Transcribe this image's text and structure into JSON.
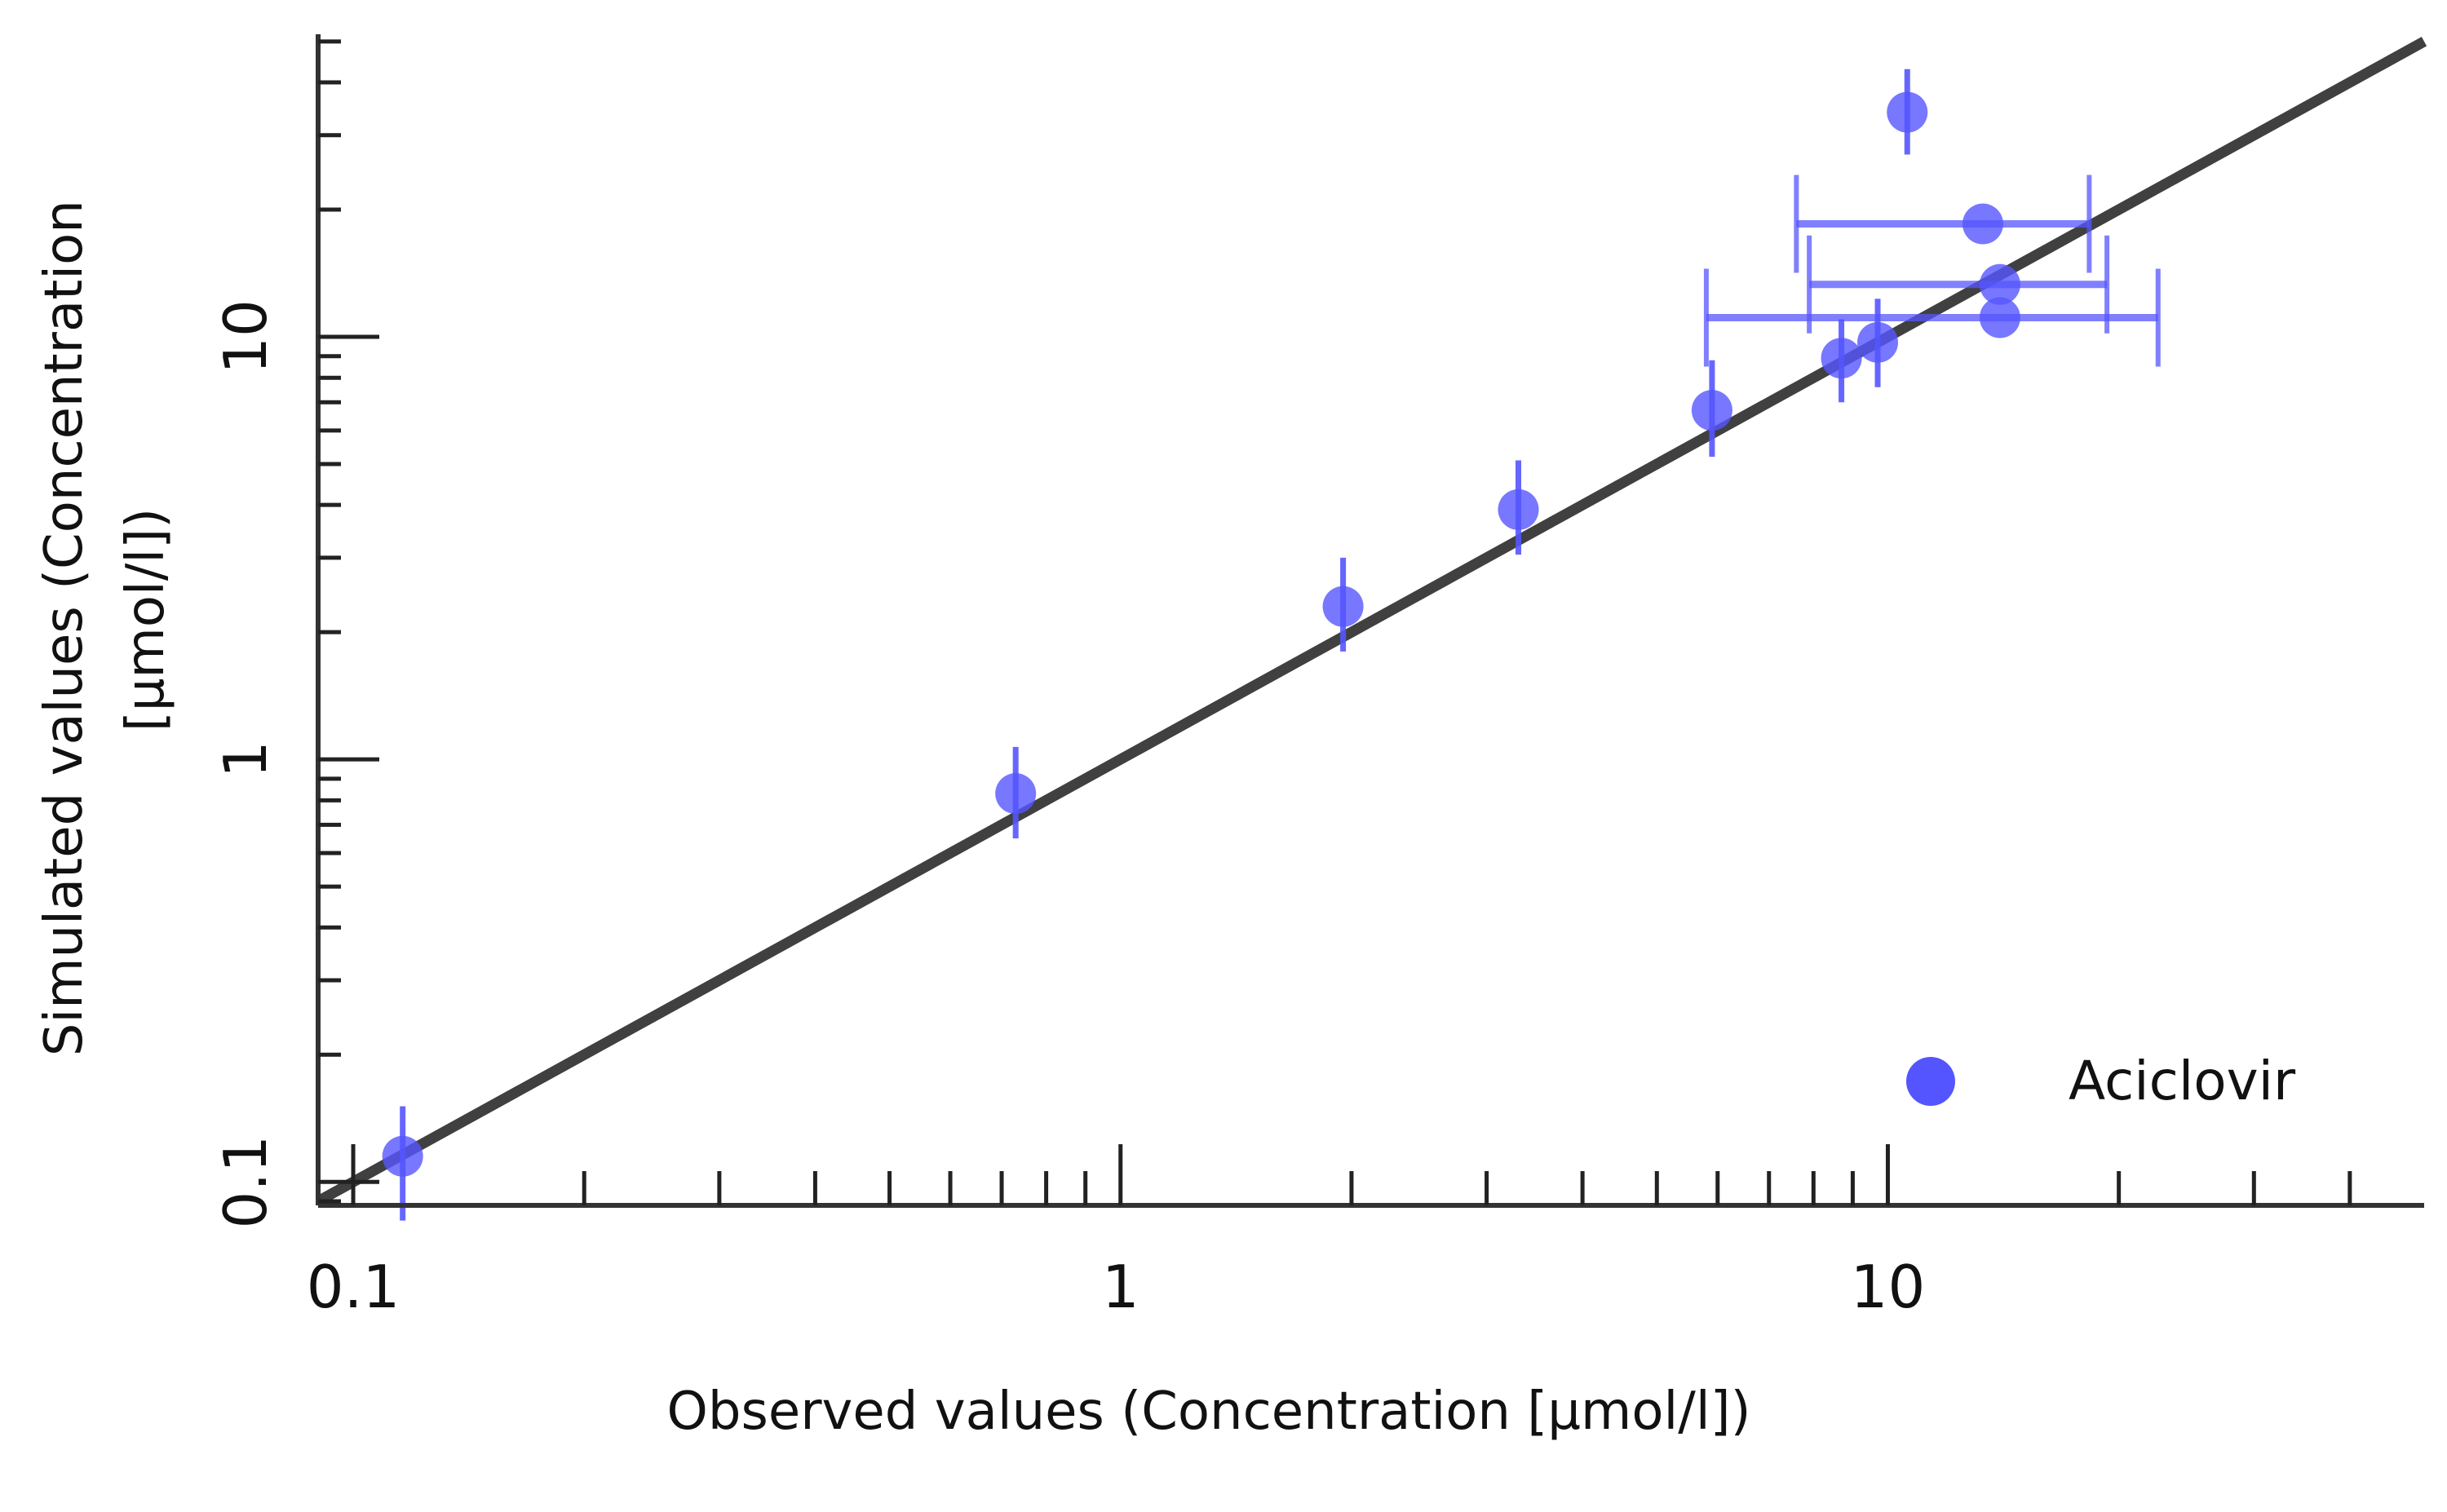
{
  "chart_data": {
    "type": "scatter",
    "xlabel": "Observed values (Concentration [µmol/l])",
    "ylabel_lines": [
      "Simulated values (Concentration",
      "[µmol/l])"
    ],
    "x_scale": "log",
    "y_scale": "log",
    "xlim": [
      0.09,
      50
    ],
    "ylim": [
      0.088,
      52
    ],
    "x_ticks": [
      {
        "value": 0.1,
        "label": "0.1"
      },
      {
        "value": 1,
        "label": "1"
      },
      {
        "value": 10,
        "label": "10"
      }
    ],
    "y_ticks": [
      {
        "value": 0.1,
        "label": "0.1"
      },
      {
        "value": 1,
        "label": "1"
      },
      {
        "value": 10,
        "label": "10"
      }
    ],
    "identity_line": {
      "from": 0.09,
      "to": 50,
      "color": "#404040"
    },
    "legend": {
      "position": "bottom-right"
    },
    "series": [
      {
        "name": "Aciclovir",
        "color": "#5555ff",
        "points": [
          {
            "x": 0.116,
            "y": 0.115,
            "y_err": [
              0.081,
              0.151
            ]
          },
          {
            "x": 0.73,
            "y": 0.83,
            "y_err": [
              0.65,
              1.07
            ]
          },
          {
            "x": 1.95,
            "y": 2.3,
            "y_err": [
              1.8,
              3.0
            ]
          },
          {
            "x": 3.3,
            "y": 3.9,
            "y_err": [
              3.05,
              5.1
            ]
          },
          {
            "x": 5.9,
            "y": 6.7,
            "y_err": [
              5.2,
              8.8
            ]
          },
          {
            "x": 8.7,
            "y": 8.9,
            "y_err": [
              7.0,
              11.0
            ]
          },
          {
            "x": 9.7,
            "y": 9.7,
            "y_err": [
              7.6,
              12.3
            ]
          },
          {
            "x": 10.6,
            "y": 34,
            "y_err": [
              27,
              43
            ]
          },
          {
            "x": 13.3,
            "y": 18.5,
            "x_err": [
              7.6,
              18.3
            ]
          },
          {
            "x": 14.0,
            "y": 13.3,
            "x_err": [
              7.9,
              19.3
            ]
          },
          {
            "x": 14.0,
            "y": 11.1,
            "x_err": [
              5.8,
              22.5
            ]
          }
        ]
      }
    ]
  }
}
